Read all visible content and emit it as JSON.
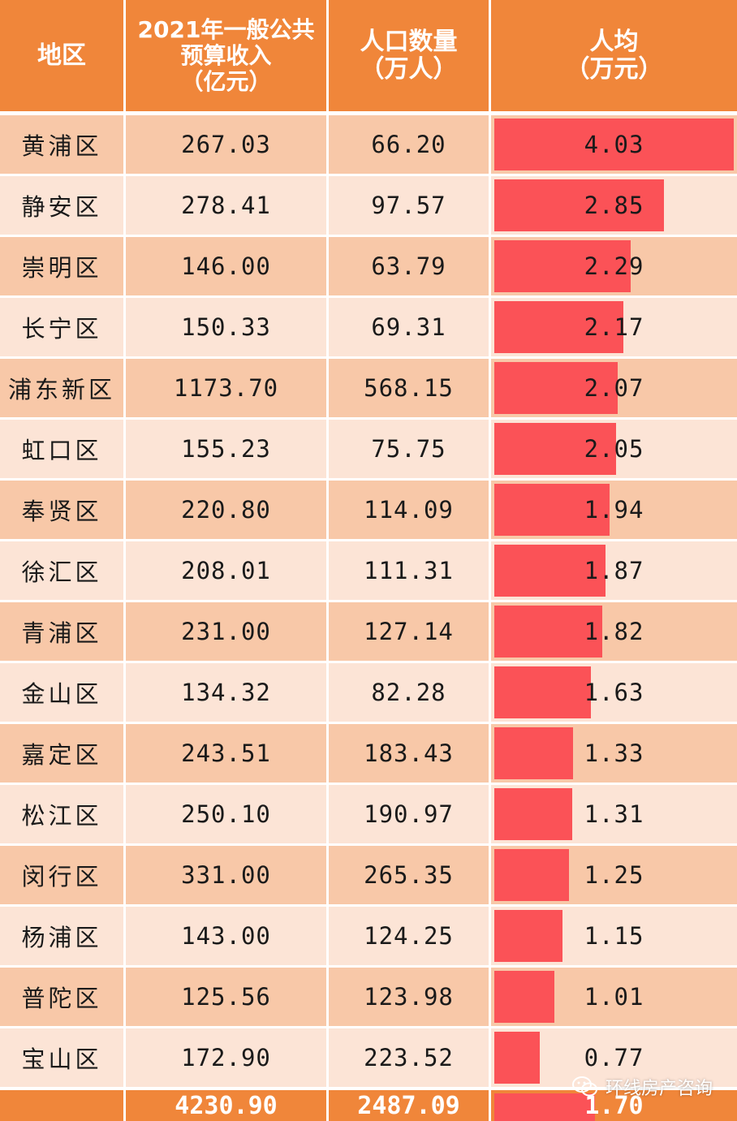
{
  "headers": {
    "region": [
      "地区"
    ],
    "budget": [
      "2021年一般公共",
      "预算收入",
      "（亿元）"
    ],
    "population": [
      "人口数量",
      "（万人）"
    ],
    "per_capita": [
      "人均",
      "（万元）"
    ]
  },
  "rows": [
    {
      "region": "黄浦区",
      "budget": "267.03",
      "population": "66.20",
      "per_capita": "4.03",
      "per_capita_value": 4.03
    },
    {
      "region": "静安区",
      "budget": "278.41",
      "population": "97.57",
      "per_capita": "2.85",
      "per_capita_value": 2.85
    },
    {
      "region": "崇明区",
      "budget": "146.00",
      "population": "63.79",
      "per_capita": "2.29",
      "per_capita_value": 2.29
    },
    {
      "region": "长宁区",
      "budget": "150.33",
      "population": "69.31",
      "per_capita": "2.17",
      "per_capita_value": 2.17
    },
    {
      "region": "浦东新区",
      "budget": "1173.70",
      "population": "568.15",
      "per_capita": "2.07",
      "per_capita_value": 2.07
    },
    {
      "region": "虹口区",
      "budget": "155.23",
      "population": "75.75",
      "per_capita": "2.05",
      "per_capita_value": 2.05
    },
    {
      "region": "奉贤区",
      "budget": "220.80",
      "population": "114.09",
      "per_capita": "1.94",
      "per_capita_value": 1.94
    },
    {
      "region": "徐汇区",
      "budget": "208.01",
      "population": "111.31",
      "per_capita": "1.87",
      "per_capita_value": 1.87
    },
    {
      "region": "青浦区",
      "budget": "231.00",
      "population": "127.14",
      "per_capita": "1.82",
      "per_capita_value": 1.82
    },
    {
      "region": "金山区",
      "budget": "134.32",
      "population": "82.28",
      "per_capita": "1.63",
      "per_capita_value": 1.63
    },
    {
      "region": "嘉定区",
      "budget": "243.51",
      "population": "183.43",
      "per_capita": "1.33",
      "per_capita_value": 1.33
    },
    {
      "region": "松江区",
      "budget": "250.10",
      "population": "190.97",
      "per_capita": "1.31",
      "per_capita_value": 1.31
    },
    {
      "region": "闵行区",
      "budget": "331.00",
      "population": "265.35",
      "per_capita": "1.25",
      "per_capita_value": 1.25
    },
    {
      "region": "杨浦区",
      "budget": "143.00",
      "population": "124.25",
      "per_capita": "1.15",
      "per_capita_value": 1.15
    },
    {
      "region": "普陀区",
      "budget": "125.56",
      "population": "123.98",
      "per_capita": "1.01",
      "per_capita_value": 1.01
    },
    {
      "region": "宝山区",
      "budget": "172.90",
      "population": "223.52",
      "per_capita": "0.77",
      "per_capita_value": 0.77
    }
  ],
  "total": {
    "region": "",
    "budget": "4230.90",
    "population": "2487.09",
    "per_capita": "1.70",
    "per_capita_value": 1.7
  },
  "watermark": {
    "text": "环线房产咨询",
    "icon": "wechat-icon"
  },
  "colors": {
    "header": "#f0863a",
    "row_dark": "#f8c8a8",
    "row_light": "#fce4d6",
    "bar": "#fb5257"
  }
}
